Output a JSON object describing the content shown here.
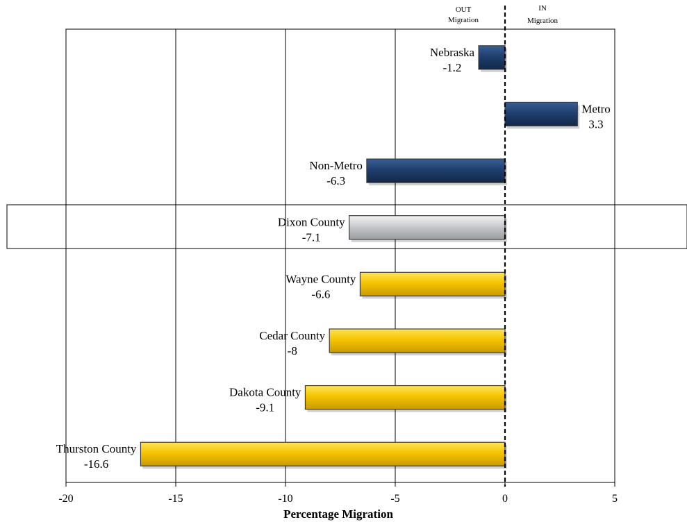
{
  "chart_data": {
    "type": "bar",
    "orientation": "horizontal",
    "categories": [
      "Nebraska",
      "Metro",
      "Non-Metro",
      "Dixon County",
      "Wayne County",
      "Cedar County",
      "Dakota County",
      "Thurston County"
    ],
    "values": [
      -1.2,
      3.3,
      -6.3,
      -7.1,
      -6.6,
      -8,
      -9.1,
      -16.6
    ],
    "value_labels": [
      "-1.2",
      "3.3",
      "-6.3",
      "-7.1",
      "-6.6",
      "-8",
      "-9.1",
      "-16.6"
    ],
    "bar_colors": [
      "#1f3f6e",
      "#1f3f6e",
      "#1f3f6e",
      "#c8cacd",
      "#f5c400",
      "#f5c400",
      "#f5c400",
      "#f5c400"
    ],
    "highlighted_category": "Dixon County",
    "title": "",
    "xlabel": "Percentage Migration",
    "ylabel": "",
    "xlim": [
      -20,
      5
    ],
    "xticks": [
      "-20",
      "-15",
      "-10",
      "-5",
      "0",
      "5"
    ],
    "grid": "vertical gridlines",
    "zero_line": "dashed",
    "header_out": [
      "OUT",
      "Migration"
    ],
    "header_in": [
      "IN",
      "Migration"
    ]
  }
}
